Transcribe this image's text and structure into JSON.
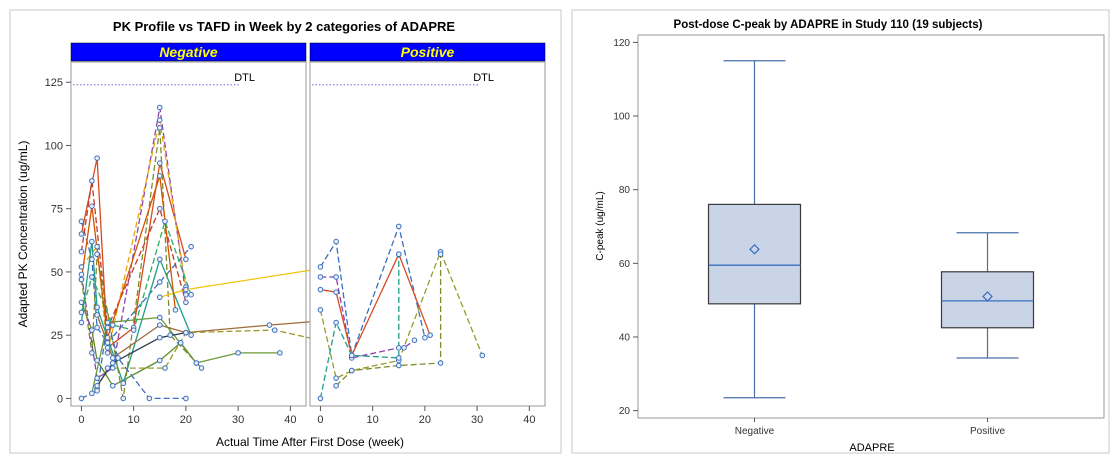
{
  "chart_data": [
    {
      "type": "line",
      "title": "PK Profile vs  TAFD in Week  by 2 categories of ADAPRE",
      "xlabel": "Actual Time After First Dose (week)",
      "ylabel": "Adapted PK Concentration (ug/mL)",
      "xlim": [
        -2,
        43
      ],
      "ylim": [
        -3,
        133
      ],
      "xticks": [
        0,
        10,
        20,
        30,
        40
      ],
      "yticks": [
        0,
        25,
        50,
        75,
        100,
        125
      ],
      "grid": false,
      "reference_line": {
        "label": "DTL",
        "y": 124
      },
      "colors": {
        "header": "#0000ff",
        "header_text": "#ffff00",
        "reference": "#6b6bd6",
        "marker": "#3a6fbf"
      },
      "panels": [
        {
          "label": "Negative",
          "series": [
            {
              "color": "#3a6fbf",
              "dash": "6,3",
              "points": [
                [
                  0,
                  70
                ],
                [
                  2,
                  55
                ],
                [
                  3,
                  28
                ],
                [
                  5,
                  22
                ],
                [
                  15,
                  46
                ],
                [
                  21,
                  60
                ]
              ]
            },
            {
              "color": "#d64a1f",
              "dash": "",
              "points": [
                [
                  0,
                  65
                ],
                [
                  3,
                  95
                ],
                [
                  5,
                  20
                ],
                [
                  10,
                  28
                ],
                [
                  15,
                  93
                ],
                [
                  20,
                  55
                ]
              ]
            },
            {
              "color": "#5a8f2a",
              "dash": "",
              "points": [
                [
                  0,
                  38
                ],
                [
                  2,
                  27
                ],
                [
                  3,
                  15
                ],
                [
                  6,
                  5
                ],
                [
                  15,
                  15
                ],
                [
                  19,
                  22
                ],
                [
                  22,
                  14
                ]
              ]
            },
            {
              "color": "#8e44ad",
              "dash": "6,3",
              "points": [
                [
                  0,
                  49
                ],
                [
                  3,
                  8
                ],
                [
                  6,
                  12
                ],
                [
                  15,
                  115
                ],
                [
                  20,
                  41
                ]
              ]
            },
            {
              "color": "#e6a817",
              "dash": "6,3",
              "points": [
                [
                  0,
                  52
                ],
                [
                  3,
                  60
                ],
                [
                  5,
                  18
                ],
                [
                  15,
                  110
                ],
                [
                  20,
                  44
                ]
              ]
            },
            {
              "color": "#1f9e89",
              "dash": "",
              "points": [
                [
                  0,
                  30
                ],
                [
                  2,
                  62
                ],
                [
                  3,
                  36
                ],
                [
                  8,
                  6
                ],
                [
                  15,
                  55
                ],
                [
                  21,
                  25
                ]
              ]
            },
            {
              "color": "#c0392b",
              "dash": "6,3",
              "points": [
                [
                  0,
                  58
                ],
                [
                  2,
                  86
                ],
                [
                  5,
                  28
                ],
                [
                  15,
                  75
                ],
                [
                  20,
                  38
                ]
              ]
            },
            {
              "color": "#7f8c2d",
              "dash": "6,3",
              "points": [
                [
                  0,
                  47
                ],
                [
                  2,
                  18
                ],
                [
                  3,
                  57
                ],
                [
                  8,
                  0
                ],
                [
                  15,
                  107
                ],
                [
                  17,
                  25
                ],
                [
                  23,
                  12
                ]
              ]
            },
            {
              "color": "#f1c40f",
              "dash": "",
              "points": [
                [
                  15,
                  40
                ],
                [
                  20,
                  43
                ],
                [
                  48,
                  52
                ]
              ]
            },
            {
              "color": "#a06a3a",
              "dash": "",
              "points": [
                [
                  3,
                  33
                ],
                [
                  6,
                  16
                ],
                [
                  15,
                  29
                ],
                [
                  20,
                  26
                ],
                [
                  36,
                  29
                ],
                [
                  48,
                  31
                ]
              ]
            },
            {
              "color": "#6a9a3a",
              "dash": "",
              "points": [
                [
                  2,
                  2
                ],
                [
                  5,
                  30
                ],
                [
                  15,
                  32
                ],
                [
                  22,
                  14
                ],
                [
                  30,
                  18
                ],
                [
                  38,
                  18
                ]
              ]
            },
            {
              "color": "#9a9a2a",
              "dash": "6,3",
              "points": [
                [
                  3,
                  4
                ],
                [
                  5,
                  12
                ],
                [
                  16,
                  12
                ],
                [
                  20,
                  26
                ],
                [
                  37,
                  27
                ],
                [
                  50,
                  21
                ]
              ]
            },
            {
              "color": "#3a6fbf",
              "dash": "6,3",
              "points": [
                [
                  0,
                  0
                ],
                [
                  3,
                  3
                ],
                [
                  5,
                  30
                ],
                [
                  7,
                  16
                ],
                [
                  13,
                  0
                ],
                [
                  20,
                  0
                ]
              ]
            },
            {
              "color": "#2c3e50",
              "dash": "",
              "points": [
                [
                  3,
                  5
                ],
                [
                  6,
                  14
                ],
                [
                  15,
                  24
                ],
                [
                  20,
                  26
                ]
              ]
            },
            {
              "color": "#27ae60",
              "dash": "6,3",
              "points": [
                [
                  0,
                  34
                ],
                [
                  2,
                  48
                ],
                [
                  6,
                  29
                ],
                [
                  10,
                  27
                ],
                [
                  16,
                  70
                ],
                [
                  21,
                  41
                ]
              ]
            },
            {
              "color": "#d35400",
              "dash": "",
              "points": [
                [
                  0,
                  47
                ],
                [
                  2,
                  76
                ],
                [
                  5,
                  24
                ],
                [
                  15,
                  88
                ],
                [
                  18,
                  35
                ]
              ]
            }
          ]
        },
        {
          "label": "Positive",
          "series": [
            {
              "color": "#3a6fbf",
              "dash": "6,3",
              "points": [
                [
                  0,
                  52
                ],
                [
                  3,
                  62
                ],
                [
                  6,
                  17
                ],
                [
                  15,
                  68
                ],
                [
                  20,
                  24
                ]
              ]
            },
            {
              "color": "#8e44ad",
              "dash": "6,3",
              "points": [
                [
                  0,
                  48
                ],
                [
                  3,
                  48
                ],
                [
                  6,
                  16
                ],
                [
                  15,
                  20
                ],
                [
                  16,
                  20
                ],
                [
                  18,
                  23
                ]
              ]
            },
            {
              "color": "#d64a1f",
              "dash": "",
              "points": [
                [
                  0,
                  43
                ],
                [
                  3,
                  42
                ],
                [
                  6,
                  17
                ],
                [
                  15,
                  57
                ],
                [
                  21,
                  25
                ]
              ]
            },
            {
              "color": "#9a9a2a",
              "dash": "6,3",
              "points": [
                [
                  0,
                  35
                ],
                [
                  3,
                  8
                ],
                [
                  6,
                  11
                ],
                [
                  15,
                  15
                ],
                [
                  23,
                  58
                ],
                [
                  31,
                  17
                ]
              ]
            },
            {
              "color": "#7f8c2d",
              "dash": "6,3",
              "points": [
                [
                  3,
                  5
                ],
                [
                  6,
                  11
                ],
                [
                  15,
                  13
                ],
                [
                  23,
                  14
                ],
                [
                  23,
                  57
                ]
              ]
            },
            {
              "color": "#1f9e89",
              "dash": "6,3",
              "points": [
                [
                  0,
                  0
                ],
                [
                  3,
                  30
                ],
                [
                  6,
                  17
                ],
                [
                  15,
                  16
                ],
                [
                  15,
                  57
                ]
              ]
            }
          ]
        }
      ]
    },
    {
      "type": "box",
      "title": "Post-dose C-peak by ADAPRE in Study 110 (19 subjects)",
      "xlabel": "ADAPRE",
      "ylabel": "C-peak (ug/mL)",
      "ylim": [
        18,
        122
      ],
      "yticks": [
        20,
        40,
        60,
        80,
        100,
        120
      ],
      "colors": {
        "box_fill": "#c9d4e6",
        "box_edge": "#3a6fbf",
        "whisker": "#4a6fa8"
      },
      "categories": [
        "Negative",
        "Positive"
      ],
      "boxes": [
        {
          "category": "Negative",
          "min": 23.5,
          "q1": 49,
          "median": 59.5,
          "q3": 76,
          "max": 115,
          "mean": 63.8
        },
        {
          "category": "Positive",
          "min": 34.3,
          "q1": 42.5,
          "median": 49.8,
          "q3": 57.7,
          "max": 68.3,
          "mean": 51
        }
      ]
    }
  ]
}
